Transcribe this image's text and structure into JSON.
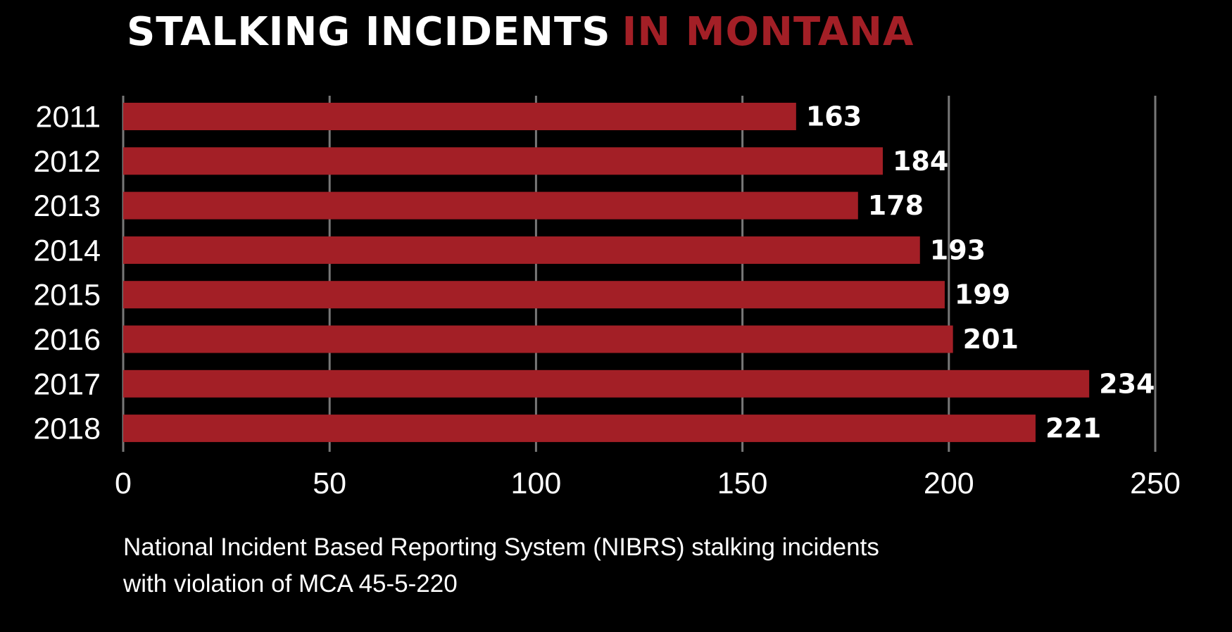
{
  "header": {
    "title_part1": "STALKING INCIDENTS",
    "title_part2": "IN MONTANA"
  },
  "colors": {
    "background": "#000000",
    "bar": "#a31f26",
    "accent_title": "#a31f26",
    "text": "#ffffff",
    "grid": "#777777"
  },
  "chart_data": {
    "type": "bar",
    "orientation": "horizontal",
    "title": "STALKING INCIDENTS IN MONTANA",
    "categories": [
      "2011",
      "2012",
      "2013",
      "2014",
      "2015",
      "2016",
      "2017",
      "2018"
    ],
    "values": [
      163,
      184,
      178,
      193,
      199,
      201,
      234,
      221
    ],
    "value_labels": [
      "163",
      "184",
      "178",
      "193",
      "199",
      "201",
      "234",
      "221"
    ],
    "xlim": [
      0,
      250
    ],
    "x_ticks": [
      0,
      50,
      100,
      150,
      200,
      250
    ],
    "x_tick_labels": [
      "0",
      "50",
      "100",
      "150",
      "200",
      "250"
    ],
    "grid": true,
    "legend": "none"
  },
  "caption": {
    "line1": "National Incident Based Reporting System (NIBRS) stalking incidents",
    "line2": "with violation of MCA 45-5-220"
  }
}
